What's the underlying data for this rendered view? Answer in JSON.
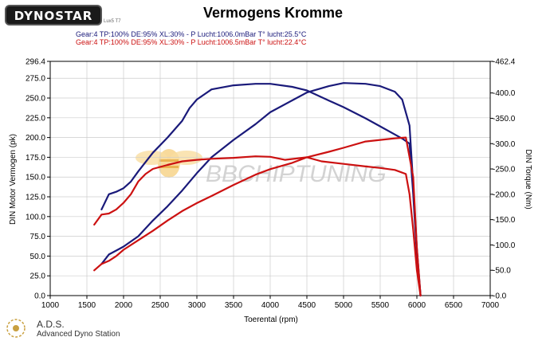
{
  "header": {
    "logo_text": "DYNOSTAR",
    "logo_small": "Lux5 T7",
    "title": "Vermogens Kromme",
    "legend1": "Gear:4 TP:100% DE:95% XL:30%  - P Lucht:1006.0mBar T° lucht:25.5°C",
    "legend2": "Gear:4 TP:100% DE:95% XL:30%  - P Lucht:1006.5mBar T° lucht:22.4°C"
  },
  "watermark": "BBCHIPTUNING",
  "footer": {
    "brand": "A.D.S.",
    "subtitle": "Advanced Dyno Station"
  },
  "colors": {
    "series1": "#1a1a7a",
    "series2": "#cc1111",
    "grid": "#cccccc",
    "watermark": "#cfcfcf",
    "watermark_accent": "#f3c060"
  },
  "chart_data": {
    "type": "line",
    "xlabel": "Toerental (rpm)",
    "ylabel_left": "DIN Motor Vermogen (pk)",
    "ylabel_right": "DIN Torque (Nm)",
    "xlim": [
      1000,
      7000
    ],
    "ylim_left": [
      0,
      296.4
    ],
    "ylim_right": [
      0,
      462.4
    ],
    "x_ticks": [
      1000,
      1500,
      2000,
      2500,
      3000,
      3500,
      4000,
      4500,
      5000,
      5500,
      6000,
      6500,
      7000
    ],
    "y_left_ticks": [
      0,
      25,
      50,
      75,
      100,
      125,
      150,
      175,
      200,
      225,
      250,
      275,
      296.4
    ],
    "y_left_tick_labels": [
      "0.0",
      "25.0",
      "50.0",
      "75.0",
      "100.0",
      "125.0",
      "150.0",
      "175.0",
      "200.0",
      "225.0",
      "250.0",
      "275.0",
      "296.4"
    ],
    "y_right_ticks": [
      0,
      50,
      100,
      150,
      200,
      250,
      300,
      350,
      400,
      462.4
    ],
    "y_right_tick_labels": [
      "-0.0",
      "-50.0",
      "-100.0",
      "-150.0",
      "-200.0",
      "-250.0",
      "-300.0",
      "-350.0",
      "-400.0",
      "-462.4"
    ],
    "grid": true,
    "series": [
      {
        "kind": "power",
        "axis": "left",
        "color_key": "series1",
        "x": [
          1700,
          1800,
          1900,
          2000,
          2200,
          2400,
          2600,
          2800,
          3000,
          3200,
          3500,
          3800,
          4000,
          4300,
          4500,
          4800,
          5000,
          5300,
          5500,
          5700,
          5800,
          5900,
          5950,
          6000,
          6050
        ],
        "y": [
          40,
          52,
          57,
          62,
          75,
          95,
          113,
          133,
          155,
          175,
          197,
          217,
          232,
          247,
          257,
          265,
          269,
          268,
          265,
          258,
          248,
          215,
          140,
          60,
          0
        ]
      },
      {
        "kind": "torque",
        "axis": "right",
        "color_key": "series1",
        "x": [
          1700,
          1750,
          1800,
          1900,
          2000,
          2100,
          2200,
          2400,
          2600,
          2800,
          2900,
          3000,
          3200,
          3500,
          3800,
          4000,
          4300,
          4500,
          4800,
          5000,
          5300,
          5500,
          5700,
          5800,
          5900,
          5950,
          6000,
          6050
        ],
        "y": [
          170,
          185,
          200,
          205,
          212,
          225,
          245,
          282,
          312,
          345,
          370,
          387,
          407,
          415,
          418,
          418,
          412,
          405,
          385,
          372,
          350,
          334,
          318,
          310,
          300,
          200,
          80,
          0
        ]
      },
      {
        "kind": "power",
        "axis": "left",
        "color_key": "series2",
        "x": [
          1600,
          1700,
          1800,
          1900,
          2000,
          2200,
          2400,
          2600,
          2800,
          3000,
          3200,
          3500,
          3800,
          4000,
          4300,
          4500,
          4800,
          5000,
          5300,
          5500,
          5700,
          5850,
          5950,
          6000,
          6050
        ],
        "y": [
          32,
          40,
          44,
          50,
          58,
          70,
          82,
          95,
          107,
          117,
          126,
          140,
          153,
          160,
          168,
          175,
          182,
          187,
          195,
          197,
          199,
          200,
          150,
          60,
          0
        ]
      },
      {
        "kind": "torque",
        "axis": "right",
        "color_key": "series2",
        "x": [
          1600,
          1700,
          1800,
          1900,
          2000,
          2100,
          2200,
          2300,
          2400,
          2600,
          2800,
          3000,
          3200,
          3500,
          3800,
          4000,
          4200,
          4500,
          4700,
          5000,
          5300,
          5500,
          5700,
          5850,
          5900,
          5950,
          6000,
          6050
        ],
        "y": [
          140,
          160,
          162,
          170,
          183,
          200,
          225,
          240,
          250,
          258,
          265,
          268,
          270,
          272,
          275,
          274,
          268,
          273,
          265,
          260,
          255,
          252,
          248,
          240,
          200,
          130,
          50,
          0
        ]
      }
    ]
  }
}
